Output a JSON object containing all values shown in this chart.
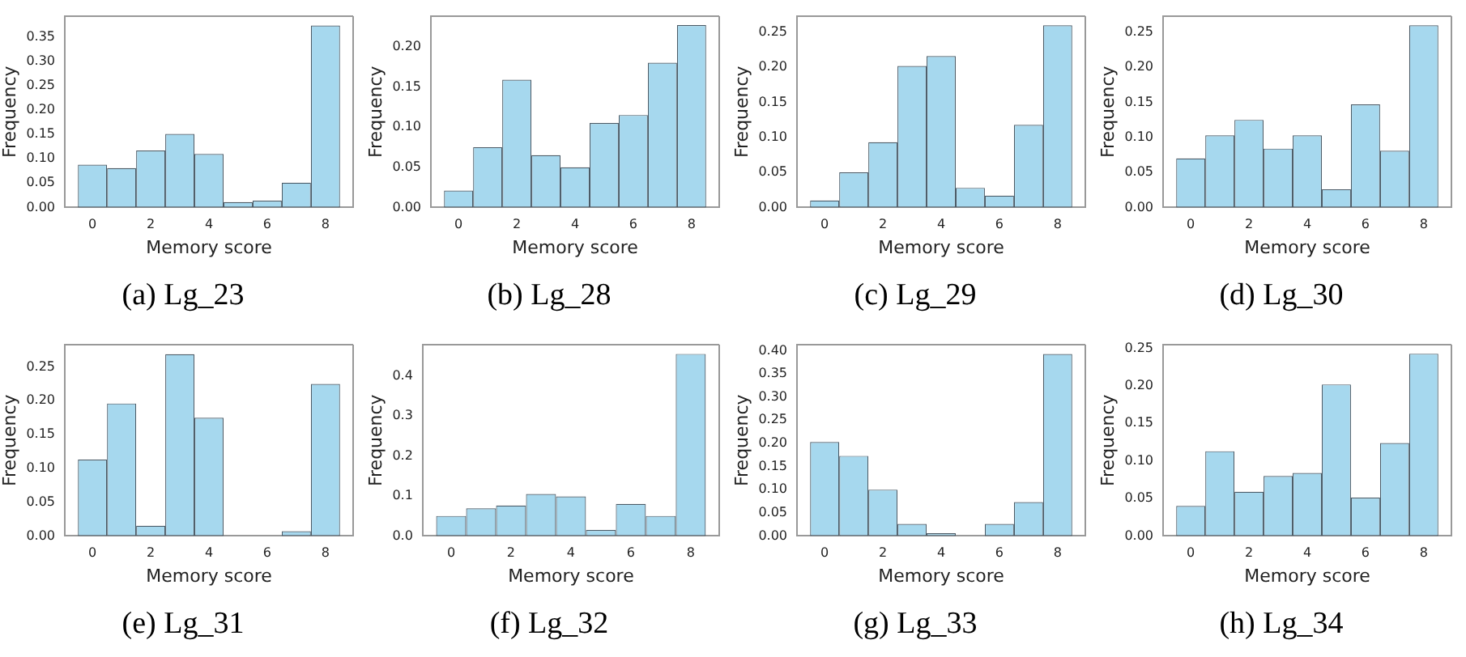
{
  "chart_data": [
    {
      "type": "histogram",
      "title": "(a) Lg_23",
      "xlabel": "Memory score",
      "ylabel": "Frequency",
      "color": "#a6d8ee",
      "bins": [
        -0.5,
        0.5,
        1.5,
        2.5,
        3.5,
        4.5,
        5.5,
        6.5,
        7.5,
        8.5
      ],
      "values": [
        0.088,
        0.081,
        0.117,
        0.151,
        0.11,
        0.011,
        0.014,
        0.051,
        0.374
      ],
      "xlim": [
        -0.95,
        8.95
      ],
      "xticks": [
        0,
        2,
        4,
        6,
        8
      ],
      "ylim": [
        0,
        0.393
      ],
      "yticks": [
        {
          "value": 0,
          "label": "0.00"
        },
        {
          "value": 0.05,
          "label": "0.05"
        },
        {
          "value": 0.1,
          "label": "0.10"
        },
        {
          "value": 0.15,
          "label": "0.15"
        },
        {
          "value": 0.2,
          "label": "0.20"
        },
        {
          "value": 0.25,
          "label": "0.25"
        },
        {
          "value": 0.3,
          "label": "0.30"
        },
        {
          "value": 0.35,
          "label": "0.35"
        }
      ]
    },
    {
      "type": "histogram",
      "title": "(b) Lg_28",
      "xlabel": "Memory score",
      "ylabel": "Frequency",
      "color": "#a6d8ee",
      "bins": [
        -0.5,
        0.5,
        1.5,
        2.5,
        3.5,
        4.5,
        5.5,
        6.5,
        7.5,
        8.5
      ],
      "values": [
        0.021,
        0.075,
        0.159,
        0.065,
        0.05,
        0.105,
        0.115,
        0.18,
        0.227
      ],
      "xlim": [
        -0.95,
        8.95
      ],
      "xticks": [
        0,
        2,
        4,
        6,
        8
      ],
      "ylim": [
        0,
        0.238
      ],
      "yticks": [
        {
          "value": 0,
          "label": "0.00"
        },
        {
          "value": 0.05,
          "label": "0.05"
        },
        {
          "value": 0.1,
          "label": "0.10"
        },
        {
          "value": 0.15,
          "label": "0.15"
        },
        {
          "value": 0.2,
          "label": "0.20"
        }
      ]
    },
    {
      "type": "histogram",
      "title": "(c) Lg_29",
      "xlabel": "Memory score",
      "ylabel": "Frequency",
      "color": "#a6d8ee",
      "bins": [
        -0.5,
        0.5,
        1.5,
        2.5,
        3.5,
        4.5,
        5.5,
        6.5,
        7.5,
        8.5
      ],
      "values": [
        0.01,
        0.05,
        0.093,
        0.202,
        0.216,
        0.028,
        0.017,
        0.118,
        0.26
      ],
      "xlim": [
        -0.95,
        8.95
      ],
      "xticks": [
        0,
        2,
        4,
        6,
        8
      ],
      "ylim": [
        0,
        0.273
      ],
      "yticks": [
        {
          "value": 0,
          "label": "0.00"
        },
        {
          "value": 0.05,
          "label": "0.05"
        },
        {
          "value": 0.1,
          "label": "0.10"
        },
        {
          "value": 0.15,
          "label": "0.15"
        },
        {
          "value": 0.2,
          "label": "0.20"
        },
        {
          "value": 0.25,
          "label": "0.25"
        }
      ]
    },
    {
      "type": "histogram",
      "title": "(d) Lg_30",
      "xlabel": "Memory score",
      "ylabel": "Frequency",
      "color": "#a6d8ee",
      "bins": [
        -0.5,
        0.5,
        1.5,
        2.5,
        3.5,
        4.5,
        5.5,
        6.5,
        7.5,
        8.5
      ],
      "values": [
        0.07,
        0.103,
        0.125,
        0.084,
        0.103,
        0.026,
        0.147,
        0.081,
        0.26
      ],
      "xlim": [
        -0.95,
        8.95
      ],
      "xticks": [
        0,
        2,
        4,
        6,
        8
      ],
      "ylim": [
        0,
        0.273
      ],
      "yticks": [
        {
          "value": 0,
          "label": "0.00"
        },
        {
          "value": 0.05,
          "label": "0.05"
        },
        {
          "value": 0.1,
          "label": "0.10"
        },
        {
          "value": 0.15,
          "label": "0.15"
        },
        {
          "value": 0.2,
          "label": "0.20"
        },
        {
          "value": 0.25,
          "label": "0.25"
        }
      ]
    },
    {
      "type": "histogram",
      "title": "(e) Lg_31",
      "xlabel": "Memory score",
      "ylabel": "Frequency",
      "color": "#a6d8ee",
      "bins": [
        -0.5,
        0.5,
        1.5,
        2.5,
        3.5,
        4.5,
        5.5,
        6.5,
        7.5,
        8.5
      ],
      "values": [
        0.113,
        0.196,
        0.015,
        0.269,
        0.175,
        0,
        0,
        0.007,
        0.225
      ],
      "xlim": [
        -0.95,
        8.95
      ],
      "xticks": [
        0,
        2,
        4,
        6,
        8
      ],
      "ylim": [
        0,
        0.283
      ],
      "yticks": [
        {
          "value": 0,
          "label": "0.00"
        },
        {
          "value": 0.05,
          "label": "0.05"
        },
        {
          "value": 0.1,
          "label": "0.10"
        },
        {
          "value": 0.15,
          "label": "0.15"
        },
        {
          "value": 0.2,
          "label": "0.20"
        },
        {
          "value": 0.25,
          "label": "0.25"
        }
      ]
    },
    {
      "type": "histogram",
      "title": "(f) Lg_32",
      "xlabel": "Memory score",
      "ylabel": "Frequency",
      "color": "#a6d8ee",
      "bins": [
        -0.5,
        0.5,
        1.5,
        2.5,
        3.5,
        4.5,
        5.5,
        6.5,
        7.5,
        8.5
      ],
      "values": [
        0.05,
        0.069,
        0.076,
        0.105,
        0.099,
        0.015,
        0.08,
        0.05,
        0.455
      ],
      "xlim": [
        -0.95,
        8.95
      ],
      "xticks": [
        0,
        2,
        4,
        6,
        8
      ],
      "ylim": [
        0,
        0.478
      ],
      "yticks": [
        {
          "value": 0,
          "label": "0.0"
        },
        {
          "value": 0.1,
          "label": "0.1"
        },
        {
          "value": 0.2,
          "label": "0.2"
        },
        {
          "value": 0.3,
          "label": "0.3"
        },
        {
          "value": 0.4,
          "label": "0.4"
        }
      ]
    },
    {
      "type": "histogram",
      "title": "(g) Lg_33",
      "xlabel": "Memory score",
      "ylabel": "Frequency",
      "color": "#a6d8ee",
      "bins": [
        -0.5,
        0.5,
        1.5,
        2.5,
        3.5,
        4.5,
        5.5,
        6.5,
        7.5,
        8.5
      ],
      "values": [
        0.203,
        0.173,
        0.1,
        0.026,
        0.006,
        0,
        0.026,
        0.073,
        0.393
      ],
      "xlim": [
        -0.95,
        8.95
      ],
      "xticks": [
        0,
        2,
        4,
        6,
        8
      ],
      "ylim": [
        0,
        0.413
      ],
      "yticks": [
        {
          "value": 0,
          "label": "0.00"
        },
        {
          "value": 0.05,
          "label": "0.05"
        },
        {
          "value": 0.1,
          "label": "0.10"
        },
        {
          "value": 0.15,
          "label": "0.15"
        },
        {
          "value": 0.2,
          "label": "0.20"
        },
        {
          "value": 0.25,
          "label": "0.25"
        },
        {
          "value": 0.3,
          "label": "0.30"
        },
        {
          "value": 0.35,
          "label": "0.35"
        },
        {
          "value": 0.4,
          "label": "0.40"
        }
      ]
    },
    {
      "type": "histogram",
      "title": "(h) Lg_34",
      "xlabel": "Memory score",
      "ylabel": "Frequency",
      "color": "#a6d8ee",
      "bins": [
        -0.5,
        0.5,
        1.5,
        2.5,
        3.5,
        4.5,
        5.5,
        6.5,
        7.5,
        8.5
      ],
      "values": [
        0.04,
        0.113,
        0.059,
        0.08,
        0.084,
        0.202,
        0.051,
        0.124,
        0.243
      ],
      "xlim": [
        -0.95,
        8.95
      ],
      "xticks": [
        0,
        2,
        4,
        6,
        8
      ],
      "ylim": [
        0,
        0.255
      ],
      "yticks": [
        {
          "value": 0,
          "label": "0.00"
        },
        {
          "value": 0.05,
          "label": "0.05"
        },
        {
          "value": 0.1,
          "label": "0.10"
        },
        {
          "value": 0.15,
          "label": "0.15"
        },
        {
          "value": 0.2,
          "label": "0.20"
        },
        {
          "value": 0.25,
          "label": "0.25"
        }
      ]
    }
  ]
}
